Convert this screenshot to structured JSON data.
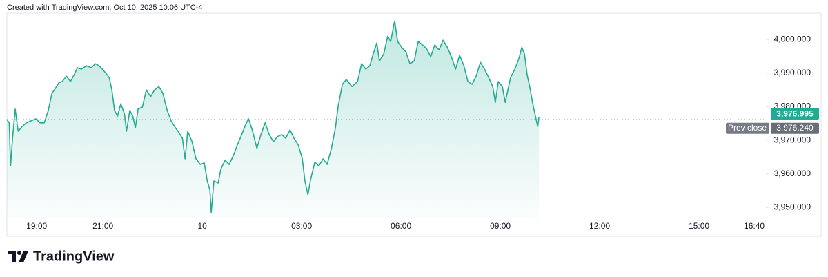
{
  "header": {
    "text": "Created with TradingView.com, Oct 10, 2025 10:06 UTC-4"
  },
  "chart_data": {
    "type": "area",
    "series": [
      {
        "color": "#22ab94",
        "x": [
          18.1,
          18.17,
          18.21,
          18.27,
          18.35,
          18.44,
          18.56,
          18.69,
          18.83,
          18.98,
          19.1,
          19.23,
          19.35,
          19.46,
          19.56,
          19.67,
          19.77,
          19.9,
          20.02,
          20.13,
          20.23,
          20.35,
          20.5,
          20.65,
          20.77,
          20.88,
          20.98,
          21.08,
          21.19,
          21.27,
          21.35,
          21.44,
          21.54,
          21.65,
          21.71,
          21.81,
          21.9,
          21.98,
          22.06,
          22.19,
          22.31,
          22.44,
          22.56,
          22.69,
          22.81,
          22.94,
          23.06,
          23.19,
          23.27,
          23.4,
          23.48,
          23.56,
          23.69,
          23.81,
          23.94,
          24.06,
          24.15,
          24.23,
          24.27,
          24.35,
          24.48,
          24.56,
          24.69,
          24.81,
          24.94,
          25.06,
          25.19,
          25.31,
          25.4,
          25.52,
          25.65,
          25.77,
          25.9,
          26.02,
          26.15,
          26.27,
          26.4,
          26.52,
          26.65,
          26.77,
          26.9,
          27.02,
          27.1,
          27.19,
          27.27,
          27.4,
          27.52,
          27.65,
          27.77,
          27.9,
          28.02,
          28.1,
          28.23,
          28.35,
          28.52,
          28.69,
          28.81,
          28.94,
          29.06,
          29.15,
          29.27,
          29.35,
          29.48,
          29.6,
          29.69,
          29.81,
          29.9,
          30.02,
          30.15,
          30.27,
          30.4,
          30.52,
          30.65,
          30.77,
          30.9,
          31.02,
          31.15,
          31.27,
          31.4,
          31.52,
          31.65,
          31.77,
          31.9,
          32.02,
          32.15,
          32.27,
          32.4,
          32.52,
          32.65,
          32.77,
          32.85,
          32.94,
          33.06,
          33.15,
          33.23,
          33.31,
          33.44,
          33.56,
          33.65,
          33.73,
          33.81,
          33.9,
          33.98,
          34.06,
          34.13,
          34.17
        ],
        "values": [
          3976.2,
          3975.2,
          3962.4,
          3970.6,
          3979.3,
          3972.7,
          3974.1,
          3975.2,
          3975.8,
          3976.4,
          3975.2,
          3975.2,
          3978.9,
          3984.0,
          3985.4,
          3987.1,
          3987.5,
          3989.1,
          3987.5,
          3989.5,
          3991.6,
          3991.2,
          3992.2,
          3991.6,
          3992.8,
          3992.2,
          3991.2,
          3990.1,
          3988.7,
          3985.0,
          3978.9,
          3977.2,
          3980.9,
          3977.8,
          3972.7,
          3978.9,
          3977.2,
          3973.7,
          3979.3,
          3979.9,
          3985.0,
          3983.0,
          3985.0,
          3986.0,
          3984.0,
          3978.9,
          3975.8,
          3973.7,
          3972.7,
          3970.6,
          3964.5,
          3972.7,
          3969.6,
          3964.5,
          3962.8,
          3963.3,
          3957.9,
          3955.2,
          3948.5,
          3957.9,
          3957.3,
          3961.4,
          3964.1,
          3962.8,
          3965.5,
          3968.6,
          3971.7,
          3974.7,
          3976.4,
          3972.7,
          3967.6,
          3971.7,
          3975.2,
          3971.7,
          3969.6,
          3971.1,
          3971.7,
          3970.6,
          3973.1,
          3970.6,
          3968.6,
          3964.5,
          3957.9,
          3953.8,
          3958.3,
          3963.5,
          3962.4,
          3964.5,
          3962.8,
          3967.6,
          3973.7,
          3979.9,
          3986.7,
          3988.1,
          3986.0,
          3987.5,
          3992.8,
          3991.2,
          3992.2,
          3995.3,
          3999.0,
          3993.6,
          3995.7,
          4001.0,
          3999.4,
          4005.5,
          3999.4,
          3997.7,
          3996.3,
          3992.8,
          3993.6,
          3999.4,
          3998.4,
          3997.3,
          3994.9,
          3998.4,
          3996.9,
          3999.8,
          3997.7,
          3994.9,
          3991.2,
          3995.3,
          3992.2,
          3987.5,
          3986.7,
          3989.1,
          3993.2,
          3991.2,
          3988.7,
          3986.0,
          3981.3,
          3987.5,
          3986.0,
          3981.3,
          3985.0,
          3988.7,
          3991.2,
          3994.3,
          3997.7,
          3995.7,
          3989.5,
          3985.4,
          3980.9,
          3977.2,
          3974.1,
          3976.995
        ],
        "last_label": {
          "value": 3976.995,
          "label": "3,976.995"
        }
      }
    ],
    "reference_line": {
      "name": "Prev close",
      "value": 3976.24,
      "value_label": "3,976.240"
    },
    "xlim": [
      18.1,
      41.02
    ],
    "xticks": [
      {
        "value": 19,
        "label": "19:00"
      },
      {
        "value": 21,
        "label": "21:00"
      },
      {
        "value": 24,
        "label": "10"
      },
      {
        "value": 27,
        "label": "03:00"
      },
      {
        "value": 30,
        "label": "06:00"
      },
      {
        "value": 33,
        "label": "09:00"
      },
      {
        "value": 36,
        "label": "12:00"
      },
      {
        "value": 39,
        "label": "15:00"
      },
      {
        "value": 40.667,
        "label": "16:40"
      }
    ],
    "ylim": [
      3947.0,
      4006.0
    ],
    "yticks": [
      {
        "value": 3950,
        "label": "3,950.000"
      },
      {
        "value": 3960,
        "label": "3,960.000"
      },
      {
        "value": 3970,
        "label": "3,970.000"
      },
      {
        "value": 3980,
        "label": "3,980.000"
      },
      {
        "value": 3990,
        "label": "3,990.000"
      },
      {
        "value": 4000,
        "label": "4,000.000"
      }
    ]
  },
  "footer": {
    "logo_text": "TradingView"
  }
}
